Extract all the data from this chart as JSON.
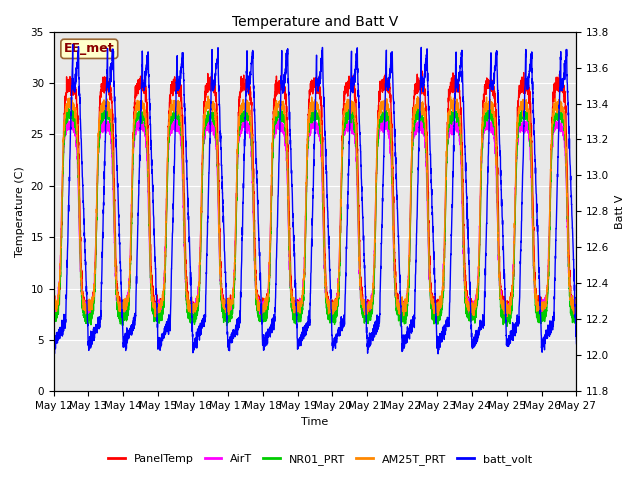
{
  "title": "Temperature and Batt V",
  "xlabel": "Time",
  "ylabel_left": "Temperature (C)",
  "ylabel_right": "Batt V",
  "annotation": "EE_met",
  "ylim_left": [
    0,
    35
  ],
  "ylim_right": [
    11.8,
    13.8
  ],
  "xtick_labels": [
    "May 12",
    "May 13",
    "May 14",
    "May 15",
    "May 16",
    "May 17",
    "May 18",
    "May 19",
    "May 20",
    "May 21",
    "May 22",
    "May 23",
    "May 24",
    "May 25",
    "May 26",
    "May 27"
  ],
  "yticks_left": [
    0,
    5,
    10,
    15,
    20,
    25,
    30,
    35
  ],
  "yticks_right": [
    11.8,
    12.0,
    12.2,
    12.4,
    12.6,
    12.8,
    13.0,
    13.2,
    13.4,
    13.6,
    13.8
  ],
  "series": {
    "PanelTemp": {
      "color": "#ff0000",
      "lw": 1.0
    },
    "AirT": {
      "color": "#ff00ff",
      "lw": 1.0
    },
    "NR01_PRT": {
      "color": "#00cc00",
      "lw": 1.0
    },
    "AM25T_PRT": {
      "color": "#ff8800",
      "lw": 1.0
    },
    "batt_volt": {
      "color": "#0000ff",
      "lw": 1.0
    }
  },
  "background_color": "#e8e8e8",
  "grid_color": "#ffffff",
  "title_fontsize": 10,
  "axis_fontsize": 8,
  "tick_fontsize": 7.5,
  "legend_fontsize": 8
}
